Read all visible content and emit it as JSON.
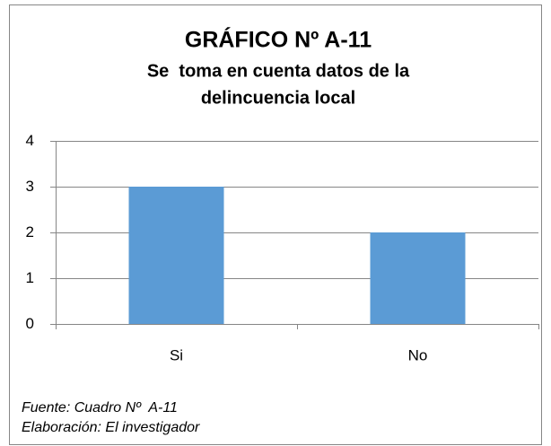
{
  "chart_data": {
    "type": "bar",
    "title": "GRÁFICO Nº A-11",
    "subtitle": [
      "Se  toma en cuenta datos de la",
      "delincuencia local"
    ],
    "categories": [
      "Si",
      "No"
    ],
    "values": [
      3,
      2
    ],
    "color": "#5b9bd5",
    "ylim": [
      0,
      4
    ],
    "yticks": [
      0,
      1,
      2,
      3,
      4
    ],
    "grid": true,
    "notes": [
      "Fuente: Cuadro Nº  A-11",
      "Elaboración: El investigador"
    ]
  }
}
